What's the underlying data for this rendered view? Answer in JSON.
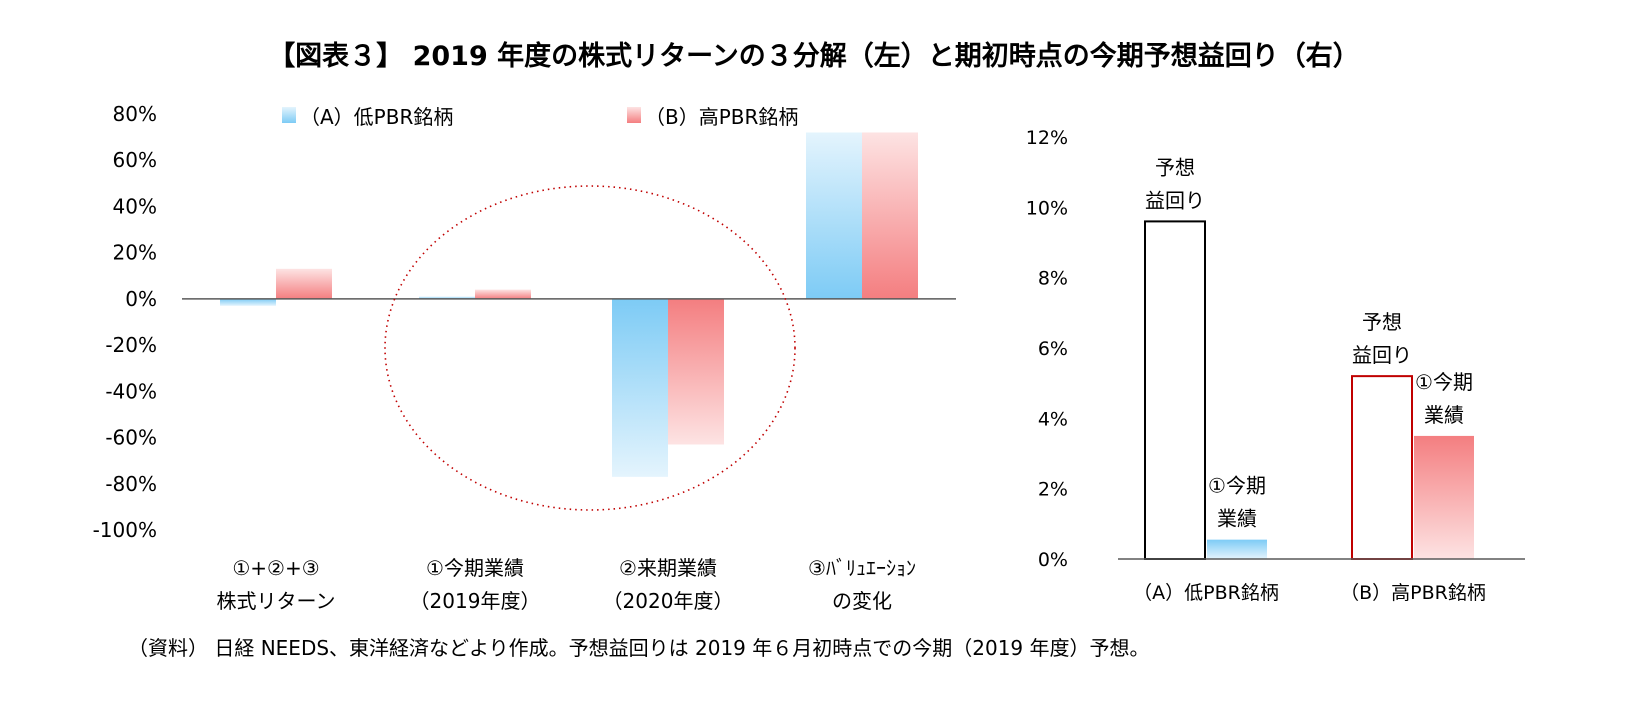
{
  "title": "【図表３】 2019 年度の株式リターンの３分解（左）と期初時点の今期予想益回り（右）",
  "source_note": "（資料） 日経 NEEDS、東洋経済などより作成。予想益回りは 2019 年６月初時点での今期（2019 年度）予想。",
  "colors": {
    "series_a": "#7dcbf5",
    "series_b": "#f47e80",
    "axis": "#595959",
    "circle": "#c00000",
    "black": "#000000"
  },
  "chart_data": [
    {
      "type": "bar",
      "legend_position": "top",
      "categories": [
        [
          "①+②+③",
          "株式リターン"
        ],
        [
          "①今期業績",
          "（2019年度）"
        ],
        [
          "②来期業績",
          "（2020年度）"
        ],
        [
          "③ﾊﾞﾘｭｴｰｼｮﾝ",
          "の変化"
        ]
      ],
      "series": [
        {
          "name": "（A）低PBR銘柄",
          "values": [
            -3,
            1,
            -77,
            72
          ]
        },
        {
          "name": "（B）高PBR銘柄",
          "values": [
            13,
            4,
            -63,
            72
          ]
        }
      ],
      "ylim": [
        -100,
        80
      ],
      "yticks": [
        "80%",
        "60%",
        "40%",
        "20%",
        "0%",
        "-20%",
        "-40%",
        "-60%",
        "-80%",
        "-100%"
      ],
      "ytick_values": [
        80,
        60,
        40,
        20,
        0,
        -20,
        -40,
        -60,
        -80,
        -100
      ],
      "highlight": "dotted circle around ①今期業績 and ②来期業績"
    },
    {
      "type": "bar",
      "categories": [
        "（A）低PBR銘柄",
        "（B）高PBR銘柄"
      ],
      "series": [
        {
          "values": [
            9.6,
            5.2
          ]
        },
        {
          "values": [
            0.55,
            3.5
          ]
        }
      ],
      "bar_labels": [
        [
          [
            "予想",
            "益回り"
          ],
          [
            "①今期",
            "業績"
          ]
        ],
        [
          [
            "予想",
            "益回り"
          ],
          [
            "①今期",
            "業績"
          ]
        ]
      ],
      "ylim": [
        0,
        12
      ],
      "yticks": [
        "12%",
        "10%",
        "8%",
        "6%",
        "4%",
        "2%",
        "0%"
      ],
      "ytick_values": [
        12,
        10,
        8,
        6,
        4,
        2,
        0
      ]
    }
  ]
}
